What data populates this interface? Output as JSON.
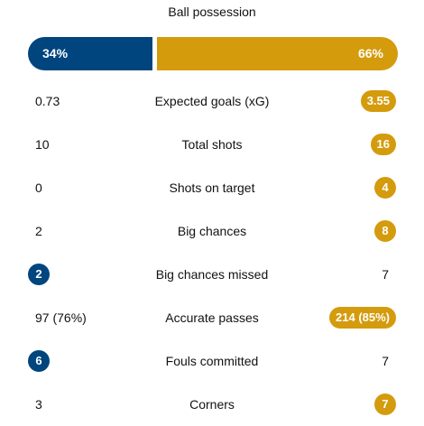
{
  "colors": {
    "home": "#00457e",
    "away": "#d49b0d"
  },
  "title": "Ball possession",
  "possession": {
    "home_label": "34%",
    "away_label": "66%",
    "home_fraction": 0.34
  },
  "stats": [
    {
      "label": "Expected goals (xG)",
      "home": "0.73",
      "away": "3.55",
      "highlight": "away"
    },
    {
      "label": "Total shots",
      "home": "10",
      "away": "16",
      "highlight": "away"
    },
    {
      "label": "Shots on target",
      "home": "0",
      "away": "4",
      "highlight": "away"
    },
    {
      "label": "Big chances",
      "home": "2",
      "away": "8",
      "highlight": "away"
    },
    {
      "label": "Big chances missed",
      "home": "2",
      "away": "7",
      "highlight": "home"
    },
    {
      "label": "Accurate passes",
      "home": "97 (76%)",
      "away": "214 (85%)",
      "highlight": "away"
    },
    {
      "label": "Fouls committed",
      "home": "6",
      "away": "7",
      "highlight": "home"
    },
    {
      "label": "Corners",
      "home": "3",
      "away": "7",
      "highlight": "away"
    }
  ]
}
